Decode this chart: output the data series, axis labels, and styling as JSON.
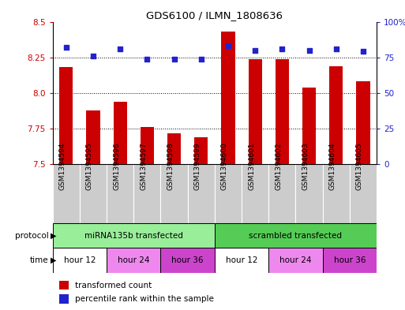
{
  "title": "GDS6100 / ILMN_1808636",
  "samples": [
    "GSM1394594",
    "GSM1394595",
    "GSM1394596",
    "GSM1394597",
    "GSM1394598",
    "GSM1394599",
    "GSM1394600",
    "GSM1394601",
    "GSM1394602",
    "GSM1394603",
    "GSM1394604",
    "GSM1394605"
  ],
  "transformed_count": [
    8.18,
    7.88,
    7.94,
    7.76,
    7.72,
    7.69,
    8.43,
    8.24,
    8.24,
    8.04,
    8.19,
    8.08
  ],
  "percentile_rank": [
    82,
    76,
    81,
    74,
    74,
    74,
    83,
    80,
    81,
    80,
    81,
    79
  ],
  "ylim_left": [
    7.5,
    8.5
  ],
  "ylim_right": [
    0,
    100
  ],
  "yticks_left": [
    7.5,
    7.75,
    8.0,
    8.25,
    8.5
  ],
  "yticks_right": [
    0,
    25,
    50,
    75,
    100
  ],
  "bar_color": "#cc0000",
  "dot_color": "#2222cc",
  "protocol_groups": [
    {
      "label": "miRNA135b transfected",
      "start": 0,
      "end": 6,
      "color": "#99ee99"
    },
    {
      "label": "scrambled transfected",
      "start": 6,
      "end": 12,
      "color": "#55cc55"
    }
  ],
  "time_groups": [
    {
      "label": "hour 12",
      "start": 0,
      "end": 2,
      "color": "#ffffff"
    },
    {
      "label": "hour 24",
      "start": 2,
      "end": 4,
      "color": "#ee88ee"
    },
    {
      "label": "hour 36",
      "start": 4,
      "end": 6,
      "color": "#cc44cc"
    },
    {
      "label": "hour 12",
      "start": 6,
      "end": 8,
      "color": "#ffffff"
    },
    {
      "label": "hour 24",
      "start": 8,
      "end": 10,
      "color": "#ee88ee"
    },
    {
      "label": "hour 36",
      "start": 10,
      "end": 12,
      "color": "#cc44cc"
    }
  ],
  "bg_color": "#ffffff",
  "sample_bg_color": "#cccccc",
  "bar_bottom": 7.5,
  "grid_lines": [
    7.75,
    8.0,
    8.25
  ]
}
